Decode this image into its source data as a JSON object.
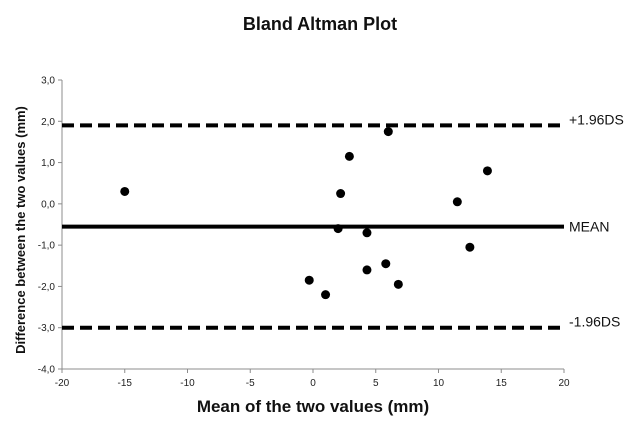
{
  "chart_data": {
    "type": "scatter",
    "title": "Bland Altman Plot",
    "xlabel": "Mean of the two values (mm)",
    "ylabel": "Difference between the two values (mm)",
    "xlim": [
      -20,
      20
    ],
    "ylim": [
      -4.0,
      3.0
    ],
    "x_ticks": [
      "-20",
      "-15",
      "-10",
      "-5",
      "0",
      "5",
      "10",
      "15",
      "20"
    ],
    "y_ticks": [
      "3,0",
      "2,0",
      "1,0",
      "0,0",
      "-1,0",
      "-2,0",
      "-3,0",
      "-4,0"
    ],
    "grid": false,
    "points": [
      {
        "x": -15.0,
        "y": 0.3
      },
      {
        "x": -0.3,
        "y": -1.85
      },
      {
        "x": 1.0,
        "y": -2.2
      },
      {
        "x": 2.0,
        "y": -0.6
      },
      {
        "x": 2.2,
        "y": 0.25
      },
      {
        "x": 2.9,
        "y": 1.15
      },
      {
        "x": 4.3,
        "y": -0.7
      },
      {
        "x": 4.3,
        "y": -1.6
      },
      {
        "x": 5.8,
        "y": -1.45
      },
      {
        "x": 6.0,
        "y": 1.75
      },
      {
        "x": 6.8,
        "y": -1.95
      },
      {
        "x": 11.5,
        "y": 0.05
      },
      {
        "x": 12.5,
        "y": -1.05
      },
      {
        "x": 13.9,
        "y": 0.8
      }
    ],
    "reference_lines": [
      {
        "label": "+1.96DS",
        "y": 1.9,
        "style": "dashed"
      },
      {
        "label": "MEAN",
        "y": -0.55,
        "style": "solid"
      },
      {
        "label": "-1.96DS",
        "y": -3.0,
        "style": "dashed"
      }
    ]
  },
  "colors": {
    "points": "#000000",
    "lines": "#000000",
    "axis": "#8c8c8c"
  }
}
